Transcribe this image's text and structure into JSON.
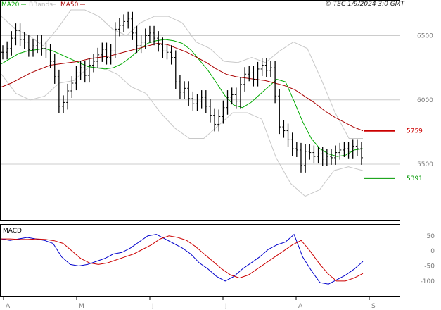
{
  "legend": {
    "ma20": {
      "label": "MA20",
      "color": "#00aa00"
    },
    "bbands": {
      "label": "BBands",
      "color": "#bbbbbb"
    },
    "ma50": {
      "label": "MA50",
      "color": "#aa0000"
    }
  },
  "source": "© TEC 1/9/2024 3:0 GMT",
  "chart_data": [
    {
      "type": "candlestick",
      "panel": "price",
      "title": "",
      "ylim": [
        5100,
        6700
      ],
      "y_ticks": [
        6500,
        6000,
        5500
      ],
      "x_months": [
        "A",
        "M",
        "J",
        "J",
        "A",
        "S"
      ],
      "grid": true,
      "legend_position": "top-left",
      "levels": [
        {
          "value": 5759,
          "label": "5759",
          "color": "#cc0000"
        },
        {
          "value": 5391,
          "label": "5391",
          "color": "#009900"
        }
      ],
      "approx_close": [
        6370,
        6400,
        6480,
        6540,
        6470,
        6450,
        6390,
        6420,
        6450,
        6400,
        6380,
        6300,
        6180,
        5950,
        5980,
        6070,
        6130,
        6210,
        6250,
        6190,
        6270,
        6300,
        6350,
        6390,
        6330,
        6380,
        6550,
        6580,
        6610,
        6630,
        6520,
        6420,
        6450,
        6500,
        6520,
        6480,
        6430,
        6380,
        6370,
        6330,
        6140,
        6060,
        6090,
        6010,
        5970,
        5990,
        6020,
        5950,
        5880,
        5810,
        5870,
        5940,
        6020,
        6040,
        5990,
        6120,
        6200,
        6210,
        6160,
        6240,
        6270,
        6230,
        6250,
        6030,
        5790,
        5760,
        5690,
        5620,
        5610,
        5490,
        5600,
        5590,
        5560,
        5580,
        5540,
        5560,
        5550,
        5590,
        5610,
        5620,
        5600,
        5640,
        5620,
        5550
      ],
      "series": [
        {
          "name": "MA20",
          "approx_values": [
            6280,
            6320,
            6360,
            6380,
            6390,
            6400,
            6380,
            6350,
            6320,
            6290,
            6260,
            6250,
            6240,
            6250,
            6280,
            6330,
            6390,
            6440,
            6460,
            6470,
            6460,
            6440,
            6390,
            6310,
            6230,
            6130,
            6030,
            5960,
            5940,
            5980,
            6040,
            6100,
            6160,
            6140,
            5990,
            5830,
            5700,
            5620,
            5580,
            5560,
            5570,
            5610,
            5620
          ]
        },
        {
          "name": "MA50",
          "approx_values": [
            6100,
            6130,
            6170,
            6210,
            6240,
            6270,
            6280,
            6290,
            6300,
            6320,
            6330,
            6340,
            6360,
            6380,
            6400,
            6420,
            6440,
            6430,
            6400,
            6370,
            6330,
            6290,
            6240,
            6200,
            6180,
            6170,
            6160,
            6150,
            6130,
            6110,
            6080,
            6030,
            5980,
            5920,
            5870,
            5830,
            5790,
            5760
          ]
        },
        {
          "name": "BBands upper",
          "approx_values": [
            6650,
            6550,
            6500,
            6420,
            6550,
            6700,
            6700,
            6650,
            6550,
            6500,
            6600,
            6650,
            6650,
            6600,
            6450,
            6400,
            6300,
            6290,
            6330,
            6290,
            6380,
            6450,
            6400,
            6160,
            5900,
            5700,
            5700
          ]
        },
        {
          "name": "BBands lower",
          "approx_values": [
            6200,
            6050,
            6000,
            6030,
            6130,
            6150,
            6250,
            6250,
            6200,
            6100,
            6050,
            5900,
            5780,
            5700,
            5700,
            5800,
            5900,
            5900,
            5850,
            5550,
            5350,
            5250,
            5300,
            5450,
            5480,
            5450
          ]
        }
      ]
    },
    {
      "type": "line",
      "panel": "indicator",
      "title": "",
      "legend_label": "MACD",
      "y_ticks": [
        "50",
        "0",
        "-50",
        "-100"
      ],
      "ylim": [
        -140,
        80
      ],
      "series": [
        {
          "name": "MACD",
          "color": "#0000cc",
          "approx_values": [
            40,
            35,
            40,
            45,
            40,
            35,
            25,
            -20,
            -45,
            -50,
            -45,
            -35,
            -25,
            -10,
            -5,
            10,
            30,
            50,
            55,
            40,
            25,
            10,
            -10,
            -40,
            -60,
            -85,
            -100,
            -85,
            -60,
            -40,
            -20,
            5,
            20,
            30,
            55,
            -20,
            -65,
            -105,
            -110,
            -95,
            -80,
            -60,
            -35
          ]
        },
        {
          "name": "Signal",
          "color": "#cc0000",
          "approx_values": [
            40,
            40,
            38,
            38,
            40,
            38,
            34,
            25,
            0,
            -25,
            -40,
            -45,
            -40,
            -30,
            -20,
            -10,
            5,
            20,
            40,
            50,
            45,
            35,
            15,
            -10,
            -35,
            -60,
            -80,
            -90,
            -80,
            -60,
            -40,
            -20,
            0,
            20,
            35,
            0,
            -40,
            -75,
            -100,
            -100,
            -90,
            -75
          ]
        }
      ]
    }
  ]
}
